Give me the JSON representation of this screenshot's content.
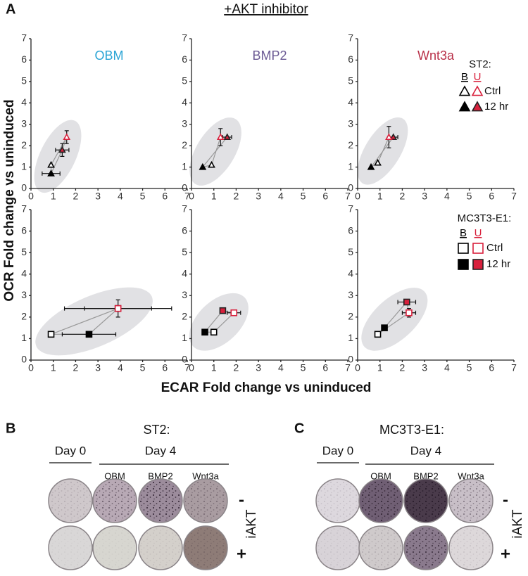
{
  "figure": {
    "panel_label": "A",
    "header": "+AKT inhibitor",
    "y_label": "OCR Fold change vs uninduced",
    "x_label": "ECAR Fold change vs uninduced"
  },
  "chart_data": [
    {
      "type": "scatter",
      "title": "OBM",
      "title_color": "#2aa4d5",
      "xlim": [
        0,
        7
      ],
      "ylim": [
        0,
        7
      ],
      "xticks": [
        0,
        1,
        2,
        3,
        4,
        5,
        6,
        7
      ],
      "yticks": [
        0,
        1,
        2,
        3,
        4,
        5,
        6,
        7
      ],
      "series": [
        {
          "color": "#000000",
          "marker": "triangle",
          "filled": false,
          "x": [
            0.9
          ],
          "values": [
            1.1
          ]
        },
        {
          "color": "#000000",
          "marker": "triangle",
          "filled": true,
          "x": [
            0.9
          ],
          "values": [
            0.7
          ],
          "xerr": [
            0.4
          ]
        },
        {
          "color": "#d8203c",
          "marker": "triangle",
          "filled": true,
          "x": [
            1.4
          ],
          "values": [
            1.8
          ],
          "xerr": [
            0.3
          ],
          "yerr": [
            0.3
          ]
        },
        {
          "color": "#d8203c",
          "marker": "triangle",
          "filled": false,
          "x": [
            1.6
          ],
          "values": [
            2.4
          ],
          "yerr": [
            0.3
          ]
        }
      ]
    },
    {
      "type": "scatter",
      "title": "BMP2",
      "title_color": "#6b5a94",
      "xlim": [
        0,
        7
      ],
      "ylim": [
        0,
        7
      ],
      "xticks": [
        0,
        1,
        2,
        3,
        4,
        5,
        6,
        7
      ],
      "yticks": [
        0,
        1,
        2,
        3,
        4,
        5,
        6,
        7
      ],
      "series": [
        {
          "color": "#000000",
          "marker": "triangle",
          "filled": false,
          "x": [
            0.9
          ],
          "values": [
            1.1
          ]
        },
        {
          "color": "#000000",
          "marker": "triangle",
          "filled": true,
          "x": [
            0.5
          ],
          "values": [
            1.0
          ]
        },
        {
          "color": "#d8203c",
          "marker": "triangle",
          "filled": true,
          "x": [
            1.6
          ],
          "values": [
            2.4
          ],
          "xerr": [
            0.2
          ]
        },
        {
          "color": "#d8203c",
          "marker": "triangle",
          "filled": false,
          "x": [
            1.3
          ],
          "values": [
            2.4
          ],
          "yerr": [
            0.4
          ]
        }
      ]
    },
    {
      "type": "scatter",
      "title": "Wnt3a",
      "title_color": "#b83048",
      "xlim": [
        0,
        7
      ],
      "ylim": [
        0,
        7
      ],
      "xticks": [
        0,
        1,
        2,
        3,
        4,
        5,
        6,
        7
      ],
      "yticks": [
        0,
        1,
        2,
        3,
        4,
        5,
        6,
        7
      ],
      "series": [
        {
          "color": "#000000",
          "marker": "triangle",
          "filled": false,
          "x": [
            0.9
          ],
          "values": [
            1.2
          ]
        },
        {
          "color": "#000000",
          "marker": "triangle",
          "filled": true,
          "x": [
            0.6
          ],
          "values": [
            1.0
          ]
        },
        {
          "color": "#d8203c",
          "marker": "triangle",
          "filled": true,
          "x": [
            1.6
          ],
          "values": [
            2.4
          ],
          "xerr": [
            0.2
          ]
        },
        {
          "color": "#d8203c",
          "marker": "triangle",
          "filled": false,
          "x": [
            1.4
          ],
          "values": [
            2.4
          ],
          "yerr": [
            0.5
          ]
        }
      ]
    },
    {
      "type": "scatter",
      "xlim": [
        0,
        7
      ],
      "ylim": [
        0,
        7
      ],
      "xticks": [
        0,
        1,
        2,
        3,
        4,
        5,
        6,
        7
      ],
      "yticks": [
        0,
        1,
        2,
        3,
        4,
        5,
        6,
        7
      ],
      "series": [
        {
          "color": "#000000",
          "marker": "square",
          "filled": false,
          "x": [
            0.9
          ],
          "values": [
            1.2
          ]
        },
        {
          "color": "#000000",
          "marker": "square",
          "filled": true,
          "x": [
            2.6
          ],
          "values": [
            1.2
          ],
          "xerr": [
            1.2
          ]
        },
        {
          "color": "#d8203c",
          "marker": "square",
          "filled": true,
          "x": [
            3.9
          ],
          "values": [
            2.4
          ],
          "xerr": [
            2.4
          ]
        },
        {
          "color": "#d8203c",
          "marker": "square",
          "filled": false,
          "x": [
            3.9
          ],
          "values": [
            2.4
          ],
          "xerr": [
            1.5
          ],
          "yerr": [
            0.4
          ]
        }
      ]
    },
    {
      "type": "scatter",
      "xlim": [
        0,
        7
      ],
      "ylim": [
        0,
        7
      ],
      "xticks": [
        0,
        1,
        2,
        3,
        4,
        5,
        6,
        7
      ],
      "yticks": [
        0,
        1,
        2,
        3,
        4,
        5,
        6,
        7
      ],
      "series": [
        {
          "color": "#000000",
          "marker": "square",
          "filled": false,
          "x": [
            1.0
          ],
          "values": [
            1.3
          ]
        },
        {
          "color": "#000000",
          "marker": "square",
          "filled": true,
          "x": [
            0.6
          ],
          "values": [
            1.3
          ]
        },
        {
          "color": "#d8203c",
          "marker": "square",
          "filled": true,
          "x": [
            1.4
          ],
          "values": [
            2.3
          ]
        },
        {
          "color": "#d8203c",
          "marker": "square",
          "filled": false,
          "x": [
            1.9
          ],
          "values": [
            2.2
          ],
          "xerr": [
            0.3
          ]
        }
      ]
    },
    {
      "type": "scatter",
      "xlim": [
        0,
        7
      ],
      "ylim": [
        0,
        7
      ],
      "xticks": [
        0,
        1,
        2,
        3,
        4,
        5,
        6,
        7
      ],
      "yticks": [
        0,
        1,
        2,
        3,
        4,
        5,
        6,
        7
      ],
      "series": [
        {
          "color": "#000000",
          "marker": "square",
          "filled": false,
          "x": [
            0.9
          ],
          "values": [
            1.2
          ]
        },
        {
          "color": "#000000",
          "marker": "square",
          "filled": true,
          "x": [
            1.2
          ],
          "values": [
            1.5
          ]
        },
        {
          "color": "#d8203c",
          "marker": "square",
          "filled": true,
          "x": [
            2.2
          ],
          "values": [
            2.7
          ],
          "xerr": [
            0.4
          ]
        },
        {
          "color": "#d8203c",
          "marker": "square",
          "filled": false,
          "x": [
            2.3
          ],
          "values": [
            2.2
          ],
          "xerr": [
            0.3
          ],
          "yerr": [
            0.2
          ]
        }
      ]
    }
  ],
  "legends": [
    {
      "title": "ST2:",
      "columns": [
        "B",
        "U"
      ],
      "rows": [
        "Ctrl",
        "12 hr"
      ],
      "marker": "triangle",
      "colors": [
        "#000000",
        "#d8203c"
      ]
    },
    {
      "title": "MC3T3-E1:",
      "columns": [
        "B",
        "U"
      ],
      "rows": [
        "Ctrl",
        "12 hr"
      ],
      "marker": "square",
      "colors": [
        "#000000",
        "#d8203c"
      ]
    }
  ],
  "panel_b": {
    "label": "B",
    "title": "ST2:",
    "day0": "Day 0",
    "day4": "Day 4",
    "conditions": [
      "OBM",
      "BMP2",
      "Wnt3a"
    ],
    "rows": [
      "-",
      "+"
    ],
    "row_label": "iAKT"
  },
  "panel_c": {
    "label": "C",
    "title": "MC3T3-E1:",
    "day0": "Day 0",
    "day4": "Day 4",
    "conditions": [
      "OBM",
      "BMP2",
      "Wnt3a"
    ],
    "rows": [
      "-",
      "+"
    ],
    "row_label": "iAKT"
  }
}
